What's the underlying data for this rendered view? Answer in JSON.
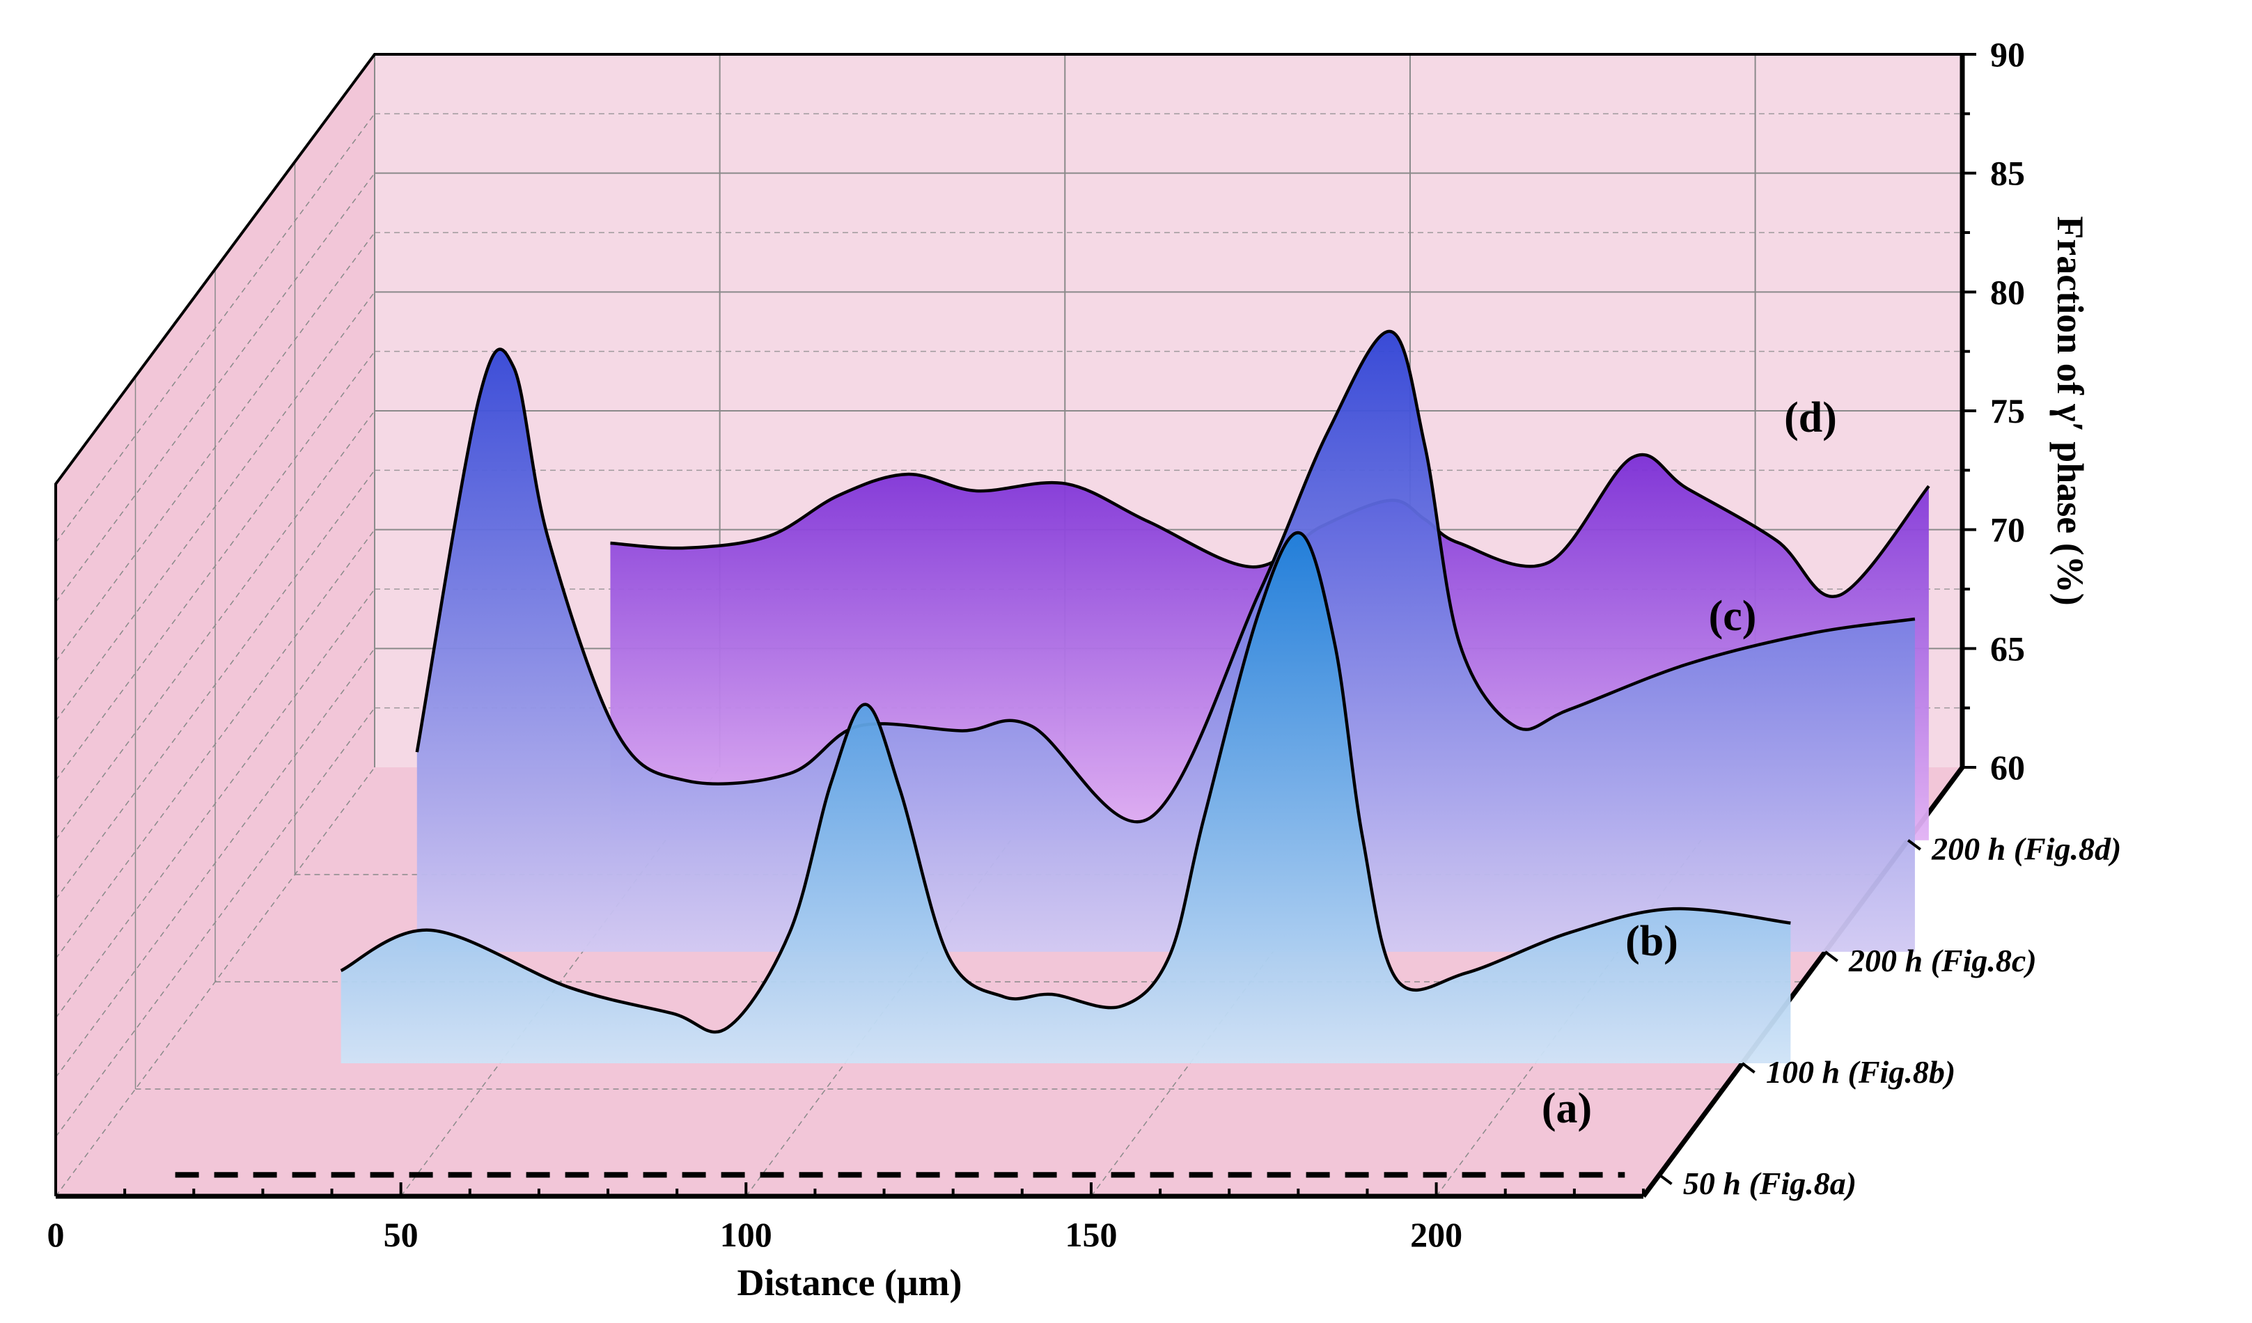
{
  "chart_data": {
    "type": "area",
    "title": "",
    "xlabel": "Distance (μm)",
    "ylabel": "Fraction of γ′ phase (%)",
    "xlim": [
      0,
      230
    ],
    "ylim": [
      60,
      90
    ],
    "x_ticks": [
      0,
      50,
      100,
      150,
      200
    ],
    "y_ticks": [
      60,
      65,
      70,
      75,
      80,
      85,
      90
    ],
    "grid": true,
    "colors": {
      "background": "#f2c6d8",
      "back_wall": "#f5d9e5",
      "grid": "#8a8a8a",
      "series_b_top": "#1f7fd9",
      "series_b_bottom": "#cfe3f7",
      "series_c_top": "#2f43d6",
      "series_c_bottom": "#d1c9f3",
      "series_d_top": "#7b2ed6",
      "series_d_bottom": "#e1b2f4"
    },
    "series": [
      {
        "name": "50 h (Fig.8a)",
        "label": "(a)",
        "style": "dashed",
        "x": [
          15,
          225
        ],
        "values": [
          60,
          60
        ]
      },
      {
        "name": "100 h (Fig.8b)",
        "label": "(b)",
        "style": "filled",
        "x": [
          27,
          40,
          60,
          75,
          83,
          92,
          98,
          103,
          108,
          115,
          123,
          130,
          140,
          147,
          152,
          160,
          166,
          171,
          175,
          180,
          190,
          205,
          220,
          237
        ],
        "values": [
          63.9,
          65.6,
          63.2,
          62.1,
          61.5,
          65.5,
          71.8,
          75.1,
          71.5,
          64.5,
          62.8,
          62.9,
          62.4,
          64.5,
          70.3,
          79.0,
          82.3,
          77.6,
          69.5,
          63.5,
          63.8,
          65.5,
          66.5,
          65.9
        ]
      },
      {
        "name": "200 h (Fig.8c)",
        "label": "(c)",
        "style": "filled",
        "x": [
          26,
          35,
          40,
          45,
          55,
          65,
          80,
          90,
          105,
          115,
          132,
          148,
          158,
          167,
          172,
          177,
          185,
          193,
          210,
          228,
          243
        ],
        "values": [
          68.4,
          83.3,
          84.6,
          77.4,
          69.2,
          67.2,
          67.5,
          69.5,
          69.3,
          69.5,
          65.6,
          75.1,
          81.9,
          86.1,
          81.3,
          73.0,
          69.5,
          70.2,
          72.1,
          73.4,
          74.0
        ]
      },
      {
        "name": "200 h (Fig.8d)",
        "label": "(d)",
        "style": "filled",
        "x": [
          42,
          53,
          65,
          75,
          85,
          95,
          108,
          120,
          135,
          145,
          155,
          160,
          165,
          178,
          190,
          198,
          211,
          220,
          233
        ],
        "values": [
          72.5,
          72.3,
          72.8,
          74.5,
          75.4,
          74.7,
          75.0,
          73.4,
          71.5,
          73.2,
          74.3,
          73.5,
          72.5,
          71.7,
          76.1,
          74.8,
          72.6,
          70.3,
          74.9
        ]
      }
    ]
  }
}
